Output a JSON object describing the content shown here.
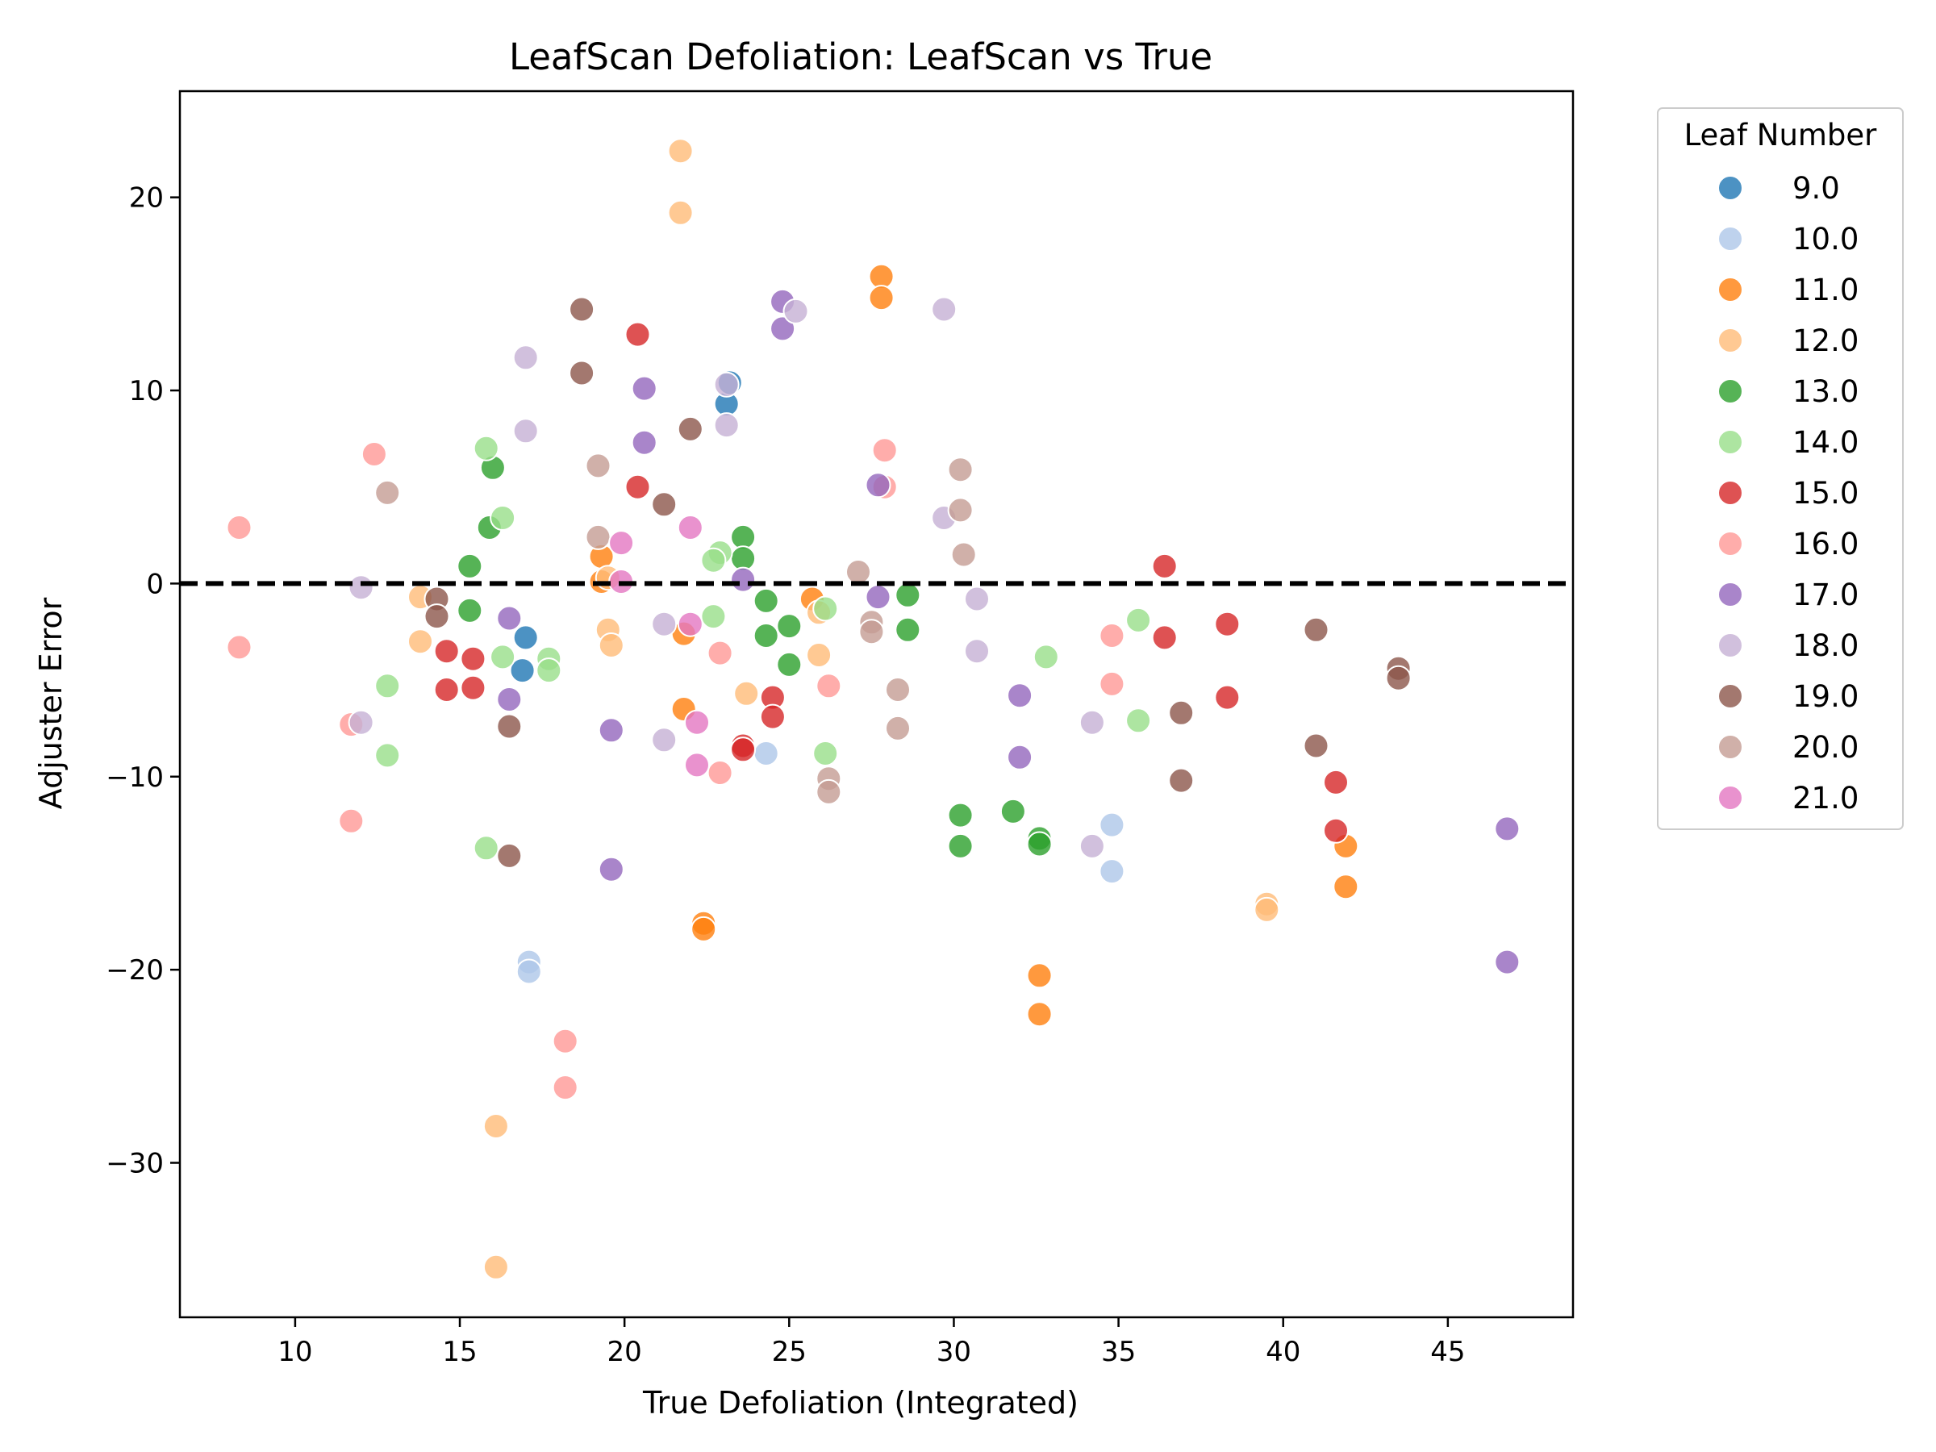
{
  "chart_data": {
    "type": "scatter",
    "title": "LeafScan Defoliation: LeafScan vs True",
    "xlabel": "True Defoliation (Integrated)",
    "ylabel": "Adjuster Error",
    "xlim": [
      6.5,
      48.8
    ],
    "ylim": [
      -38.0,
      25.5
    ],
    "xticks": [
      10,
      15,
      20,
      25,
      30,
      35,
      40,
      45
    ],
    "yticks": [
      -30,
      -20,
      -10,
      0,
      10,
      20
    ],
    "ytick_labels": [
      "−30",
      "−20",
      "−10",
      "0",
      "10",
      "20"
    ],
    "reference_line": {
      "y": 0,
      "style": "dashed",
      "color": "#000000"
    },
    "grid": false,
    "legend": {
      "title": "Leaf Number",
      "placement": "outside-right"
    },
    "series": [
      {
        "name": "9.0",
        "color": "#1f77b4",
        "points": [
          [
            23.1,
            9.3
          ],
          [
            23.2,
            10.4
          ],
          [
            17.0,
            -2.8
          ],
          [
            16.9,
            -4.5
          ]
        ]
      },
      {
        "name": "10.0",
        "color": "#aec7e8",
        "points": [
          [
            24.3,
            -8.8
          ],
          [
            17.1,
            -19.6
          ],
          [
            17.1,
            -20.1
          ],
          [
            34.8,
            -12.5
          ],
          [
            34.8,
            -14.9
          ]
        ]
      },
      {
        "name": "11.0",
        "color": "#ff7f0e",
        "points": [
          [
            27.8,
            15.9
          ],
          [
            27.8,
            14.8
          ],
          [
            19.3,
            1.4
          ],
          [
            19.3,
            0.1
          ],
          [
            21.8,
            -2.6
          ],
          [
            21.8,
            -6.5
          ],
          [
            25.7,
            -0.8
          ],
          [
            22.4,
            -17.6
          ],
          [
            22.4,
            -17.9
          ],
          [
            32.6,
            -20.3
          ],
          [
            32.6,
            -22.3
          ],
          [
            41.9,
            -13.6
          ],
          [
            41.9,
            -15.7
          ]
        ]
      },
      {
        "name": "12.0",
        "color": "#ffbb78",
        "points": [
          [
            21.7,
            22.4
          ],
          [
            21.7,
            19.2
          ],
          [
            13.8,
            -0.7
          ],
          [
            13.8,
            -3.0
          ],
          [
            19.5,
            -2.4
          ],
          [
            19.6,
            -3.2
          ],
          [
            19.5,
            0.3
          ],
          [
            23.7,
            -5.7
          ],
          [
            25.9,
            -1.5
          ],
          [
            25.9,
            -3.7
          ],
          [
            16.1,
            -28.1
          ],
          [
            16.1,
            -35.4
          ],
          [
            39.5,
            -16.6
          ],
          [
            39.5,
            -16.9
          ]
        ]
      },
      {
        "name": "13.0",
        "color": "#2ca02c",
        "points": [
          [
            16.0,
            6.0
          ],
          [
            15.9,
            2.9
          ],
          [
            15.3,
            0.9
          ],
          [
            15.3,
            -1.4
          ],
          [
            23.6,
            2.4
          ],
          [
            23.6,
            1.3
          ],
          [
            24.3,
            -0.9
          ],
          [
            24.3,
            -2.7
          ],
          [
            25.0,
            -2.2
          ],
          [
            25.0,
            -4.2
          ],
          [
            28.6,
            -0.6
          ],
          [
            28.6,
            -2.4
          ],
          [
            30.2,
            -12.0
          ],
          [
            30.2,
            -13.6
          ],
          [
            31.8,
            -11.8
          ],
          [
            32.6,
            -13.2
          ],
          [
            32.6,
            -13.5
          ]
        ]
      },
      {
        "name": "14.0",
        "color": "#98df8a",
        "points": [
          [
            15.8,
            7.0
          ],
          [
            16.3,
            3.4
          ],
          [
            16.3,
            -3.8
          ],
          [
            17.7,
            -3.9
          ],
          [
            17.7,
            -4.5
          ],
          [
            12.8,
            -5.3
          ],
          [
            12.8,
            -8.9
          ],
          [
            15.8,
            -13.7
          ],
          [
            22.9,
            1.6
          ],
          [
            22.7,
            1.2
          ],
          [
            22.7,
            -1.7
          ],
          [
            26.1,
            -1.3
          ],
          [
            26.1,
            -8.8
          ],
          [
            32.8,
            -3.8
          ],
          [
            35.6,
            -1.9
          ],
          [
            35.6,
            -7.1
          ]
        ]
      },
      {
        "name": "15.0",
        "color": "#d62728",
        "points": [
          [
            20.4,
            12.9
          ],
          [
            20.4,
            5.0
          ],
          [
            14.6,
            -3.5
          ],
          [
            14.6,
            -5.5
          ],
          [
            15.4,
            -3.9
          ],
          [
            15.4,
            -5.4
          ],
          [
            24.5,
            -5.9
          ],
          [
            24.5,
            -6.9
          ],
          [
            23.6,
            -8.4
          ],
          [
            23.6,
            -8.6
          ],
          [
            36.4,
            0.9
          ],
          [
            36.4,
            -2.8
          ],
          [
            38.3,
            -2.1
          ],
          [
            38.3,
            -5.9
          ],
          [
            41.6,
            -10.3
          ],
          [
            41.6,
            -12.8
          ]
        ]
      },
      {
        "name": "16.0",
        "color": "#ff9896",
        "points": [
          [
            8.3,
            2.9
          ],
          [
            8.3,
            -3.3
          ],
          [
            12.4,
            6.7
          ],
          [
            11.7,
            -7.3
          ],
          [
            11.7,
            -12.3
          ],
          [
            22.9,
            -3.6
          ],
          [
            22.9,
            -9.8
          ],
          [
            26.2,
            -5.3
          ],
          [
            27.9,
            6.9
          ],
          [
            27.9,
            5.0
          ],
          [
            18.2,
            -23.7
          ],
          [
            18.2,
            -26.1
          ],
          [
            34.8,
            -2.7
          ],
          [
            34.8,
            -5.2
          ]
        ]
      },
      {
        "name": "17.0",
        "color": "#9467bd",
        "points": [
          [
            24.8,
            14.6
          ],
          [
            24.8,
            13.2
          ],
          [
            20.6,
            10.1
          ],
          [
            20.6,
            7.3
          ],
          [
            16.5,
            -1.8
          ],
          [
            16.5,
            -6.0
          ],
          [
            19.6,
            -7.6
          ],
          [
            19.6,
            -14.8
          ],
          [
            23.6,
            0.2
          ],
          [
            27.7,
            5.1
          ],
          [
            27.7,
            -0.7
          ],
          [
            32.0,
            -5.8
          ],
          [
            32.0,
            -9.0
          ],
          [
            46.8,
            -12.7
          ],
          [
            46.8,
            -19.6
          ]
        ]
      },
      {
        "name": "18.0",
        "color": "#c5b0d5",
        "points": [
          [
            17.0,
            11.7
          ],
          [
            17.0,
            7.9
          ],
          [
            12.0,
            -0.2
          ],
          [
            12.0,
            -7.2
          ],
          [
            25.2,
            14.1
          ],
          [
            23.1,
            10.3
          ],
          [
            23.1,
            8.2
          ],
          [
            29.7,
            14.2
          ],
          [
            29.7,
            3.4
          ],
          [
            30.7,
            -0.8
          ],
          [
            30.7,
            -3.5
          ],
          [
            21.2,
            -2.1
          ],
          [
            21.2,
            -8.1
          ],
          [
            34.2,
            -7.2
          ],
          [
            34.2,
            -13.6
          ]
        ]
      },
      {
        "name": "19.0",
        "color": "#8c564b",
        "points": [
          [
            18.7,
            14.2
          ],
          [
            18.7,
            10.9
          ],
          [
            22.0,
            8.0
          ],
          [
            21.2,
            4.1
          ],
          [
            14.3,
            -0.8
          ],
          [
            14.3,
            -1.7
          ],
          [
            16.5,
            -7.4
          ],
          [
            16.5,
            -14.1
          ],
          [
            36.9,
            -6.7
          ],
          [
            36.9,
            -10.2
          ],
          [
            41.0,
            -2.4
          ],
          [
            41.0,
            -8.4
          ],
          [
            43.5,
            -4.4
          ],
          [
            43.5,
            -4.9
          ]
        ]
      },
      {
        "name": "20.0",
        "color": "#c49c94",
        "points": [
          [
            12.8,
            4.7
          ],
          [
            19.2,
            6.1
          ],
          [
            19.2,
            2.4
          ],
          [
            27.1,
            0.6
          ],
          [
            27.5,
            -2.0
          ],
          [
            27.5,
            -2.5
          ],
          [
            28.3,
            -5.5
          ],
          [
            28.3,
            -7.5
          ],
          [
            30.2,
            5.9
          ],
          [
            30.2,
            3.8
          ],
          [
            30.3,
            1.5
          ],
          [
            26.2,
            -10.1
          ],
          [
            26.2,
            -10.8
          ]
        ]
      },
      {
        "name": "21.0",
        "color": "#e377c2",
        "points": [
          [
            19.9,
            2.1
          ],
          [
            19.9,
            0.1
          ],
          [
            22.0,
            2.9
          ],
          [
            22.0,
            -2.1
          ],
          [
            22.2,
            -7.2
          ],
          [
            22.2,
            -9.4
          ]
        ]
      }
    ]
  }
}
